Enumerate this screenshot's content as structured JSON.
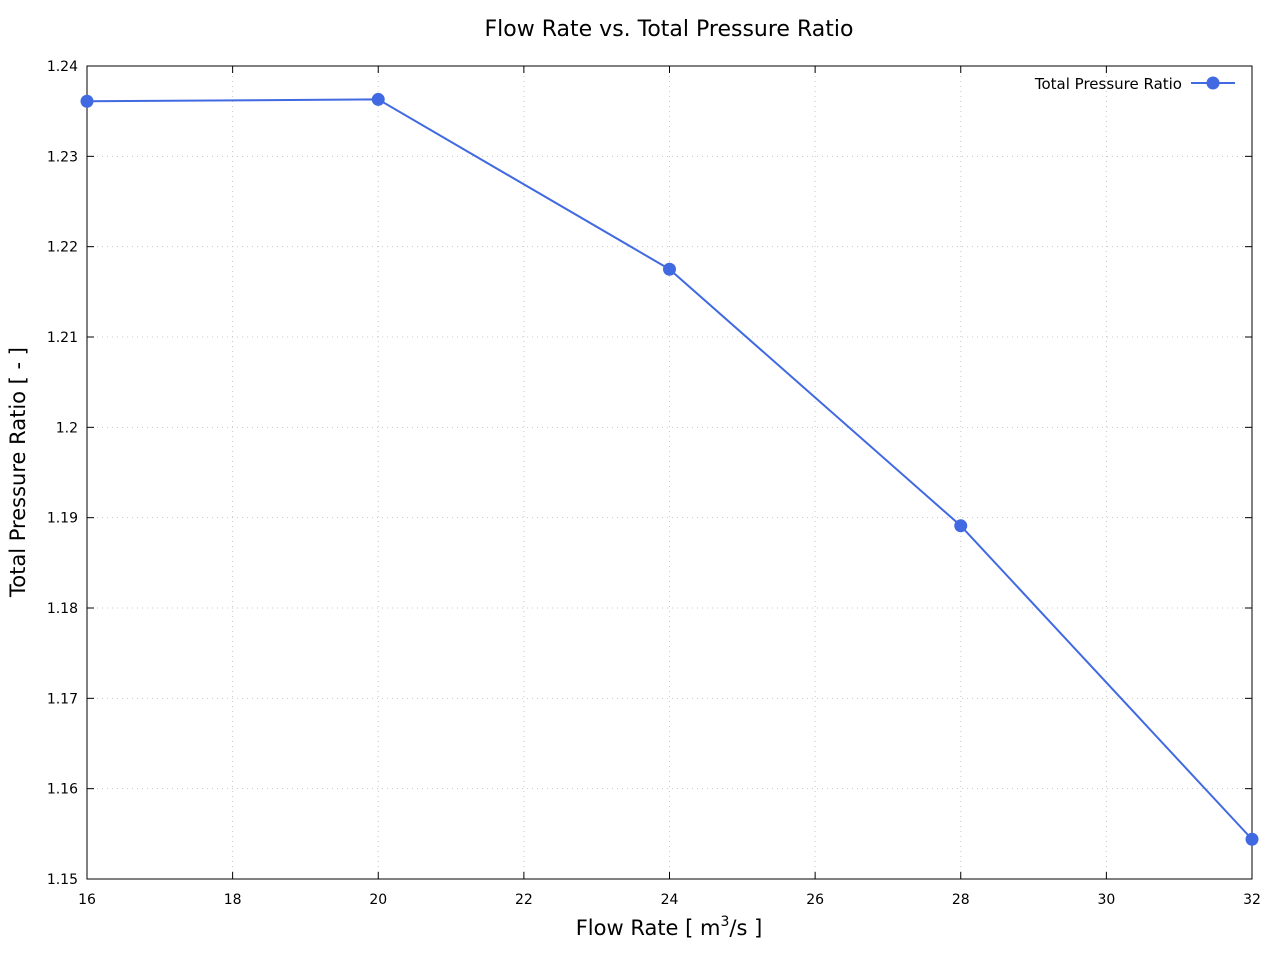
{
  "chart_data": {
    "type": "line",
    "title": "Flow Rate vs. Total Pressure Ratio",
    "xlabel_main": "Flow Rate [ m",
    "xlabel_sup": "3",
    "xlabel_tail": "/s ]",
    "ylabel": "Total Pressure Ratio [ - ]",
    "xlim": [
      16,
      32
    ],
    "ylim": [
      1.15,
      1.24
    ],
    "x_ticks": [
      "16",
      "18",
      "20",
      "22",
      "24",
      "26",
      "28",
      "30",
      "32"
    ],
    "y_ticks": [
      "1.15",
      "1.16",
      "1.17",
      "1.18",
      "1.19",
      "1.2",
      "1.21",
      "1.22",
      "1.23",
      "1.24"
    ],
    "grid": true,
    "legend_position": "top-right",
    "series": [
      {
        "name": "Total Pressure Ratio",
        "color": "#4169e1",
        "marker": "circle",
        "x": [
          16,
          20,
          24,
          28,
          32
        ],
        "y": [
          1.2361,
          1.2363,
          1.2175,
          1.1891,
          1.1544
        ]
      }
    ]
  }
}
